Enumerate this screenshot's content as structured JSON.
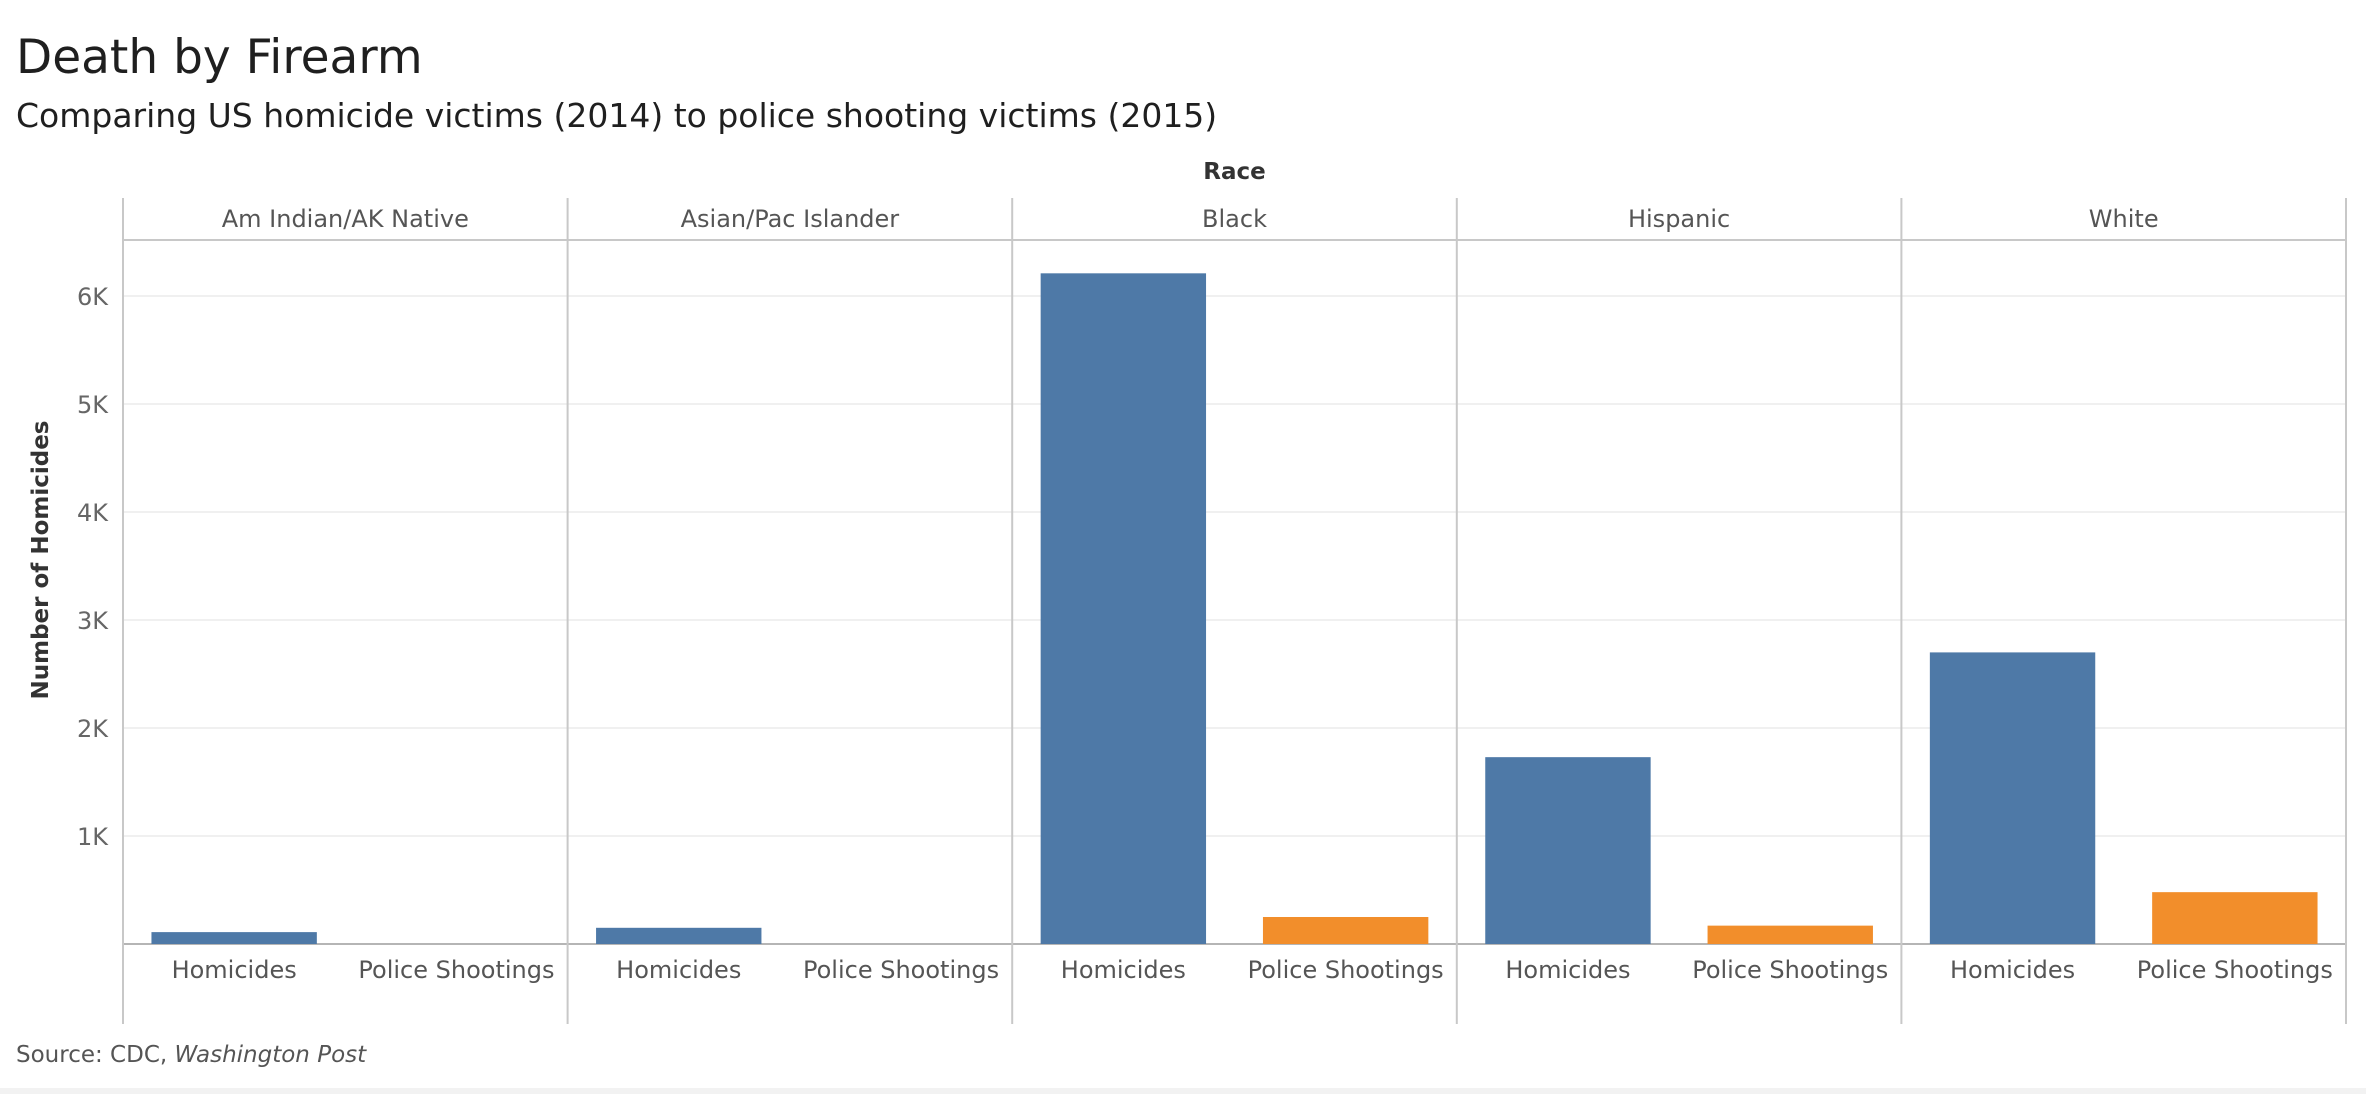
{
  "title": "Death by Firearm",
  "subtitle": "Comparing US homicide victims (2014) to police shooting victims (2015)",
  "source": {
    "prefix": "Source: CDC, ",
    "italic": "Washington Post"
  },
  "colors": {
    "homicides": "#4e79a7",
    "police_shootings": "#f28e2b",
    "gridline": "#ececec",
    "divider": "#c8c8c8"
  },
  "chart_data": {
    "type": "bar",
    "column_header": "Race",
    "ylabel": "Number of Homicides",
    "ylim": [
      0,
      6600
    ],
    "yticks": [
      {
        "value": 1000,
        "label": "1K"
      },
      {
        "value": 2000,
        "label": "2K"
      },
      {
        "value": 3000,
        "label": "3K"
      },
      {
        "value": 4000,
        "label": "4K"
      },
      {
        "value": 5000,
        "label": "5K"
      },
      {
        "value": 6000,
        "label": "6K"
      }
    ],
    "grid": true,
    "legend": "none",
    "categories": [
      "Homicides",
      "Police Shootings"
    ],
    "groups": [
      {
        "name": "Am Indian/AK Native",
        "values": [
          110,
          0
        ]
      },
      {
        "name": "Asian/Pac Islander",
        "values": [
          150,
          0
        ]
      },
      {
        "name": "Black",
        "values": [
          6210,
          250
        ]
      },
      {
        "name": "Hispanic",
        "values": [
          1730,
          170
        ]
      },
      {
        "name": "White",
        "values": [
          2700,
          480
        ]
      }
    ]
  }
}
